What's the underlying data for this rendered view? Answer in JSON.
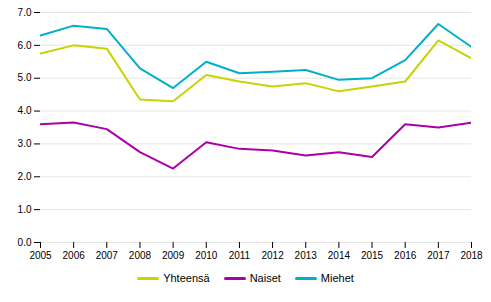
{
  "chart_data": {
    "type": "line",
    "x": [
      2005,
      2006,
      2007,
      2008,
      2009,
      2010,
      2011,
      2012,
      2013,
      2014,
      2015,
      2016,
      2017,
      2018
    ],
    "series": [
      {
        "name": "Yhteensä",
        "color": "#c8d400",
        "values": [
          5.75,
          6.0,
          5.9,
          4.35,
          4.3,
          5.1,
          4.9,
          4.75,
          4.85,
          4.6,
          4.75,
          4.9,
          6.15,
          5.6
        ]
      },
      {
        "name": "Naiset",
        "color": "#aa00aa",
        "values": [
          3.6,
          3.65,
          3.45,
          2.75,
          2.25,
          3.05,
          2.85,
          2.8,
          2.65,
          2.75,
          2.6,
          3.6,
          3.5,
          3.65
        ]
      },
      {
        "name": "Miehet",
        "color": "#00b0c8",
        "values": [
          6.3,
          6.6,
          6.5,
          5.3,
          4.7,
          5.5,
          5.15,
          5.2,
          5.25,
          4.95,
          5.0,
          5.55,
          6.65,
          5.95
        ]
      }
    ],
    "xlim": [
      2005,
      2018
    ],
    "xticks": [
      2005,
      2006,
      2007,
      2008,
      2009,
      2010,
      2011,
      2012,
      2013,
      2014,
      2015,
      2016,
      2017,
      2018
    ],
    "ylim": [
      0.0,
      7.0
    ],
    "yticks": [
      {
        "value": 0,
        "label": "0.0"
      },
      {
        "value": 1,
        "label": "1.0"
      },
      {
        "value": 2,
        "label": "2.0"
      },
      {
        "value": 3,
        "label": "3.0"
      },
      {
        "value": 4,
        "label": "4.0"
      },
      {
        "value": 5,
        "label": "5.0"
      },
      {
        "value": 6,
        "label": "6.0"
      },
      {
        "value": 7,
        "label": "7.0"
      }
    ],
    "grid": true,
    "legend": "bottom"
  }
}
